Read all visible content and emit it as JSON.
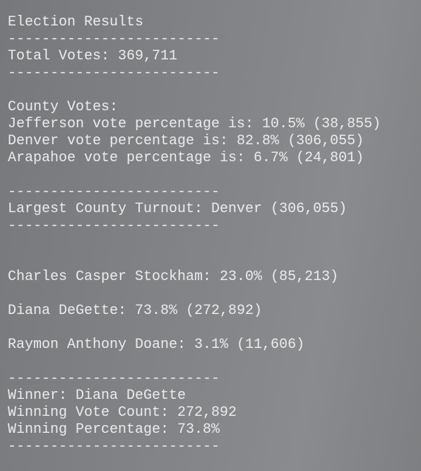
{
  "title": "Election Results",
  "separator": "-------------------------",
  "total_votes": "Total Votes: 369,711",
  "county_votes": {
    "heading": "County Votes:",
    "lines": [
      "Jefferson vote percentage is: 10.5% (38,855)",
      "Denver vote percentage is: 82.8% (306,055)",
      "Arapahoe vote percentage is: 6.7% (24,801)"
    ]
  },
  "largest_county": "Largest County Turnout: Denver (306,055)",
  "candidates": [
    "Charles Casper Stockham: 23.0% (85,213)",
    "Diana DeGette: 73.8% (272,892)",
    "Raymon Anthony Doane: 3.1% (11,606)"
  ],
  "winner": {
    "name": "Winner: Diana DeGette",
    "vote_count": "Winning Vote Count: 272,892",
    "percentage": "Winning Percentage: 73.8%"
  }
}
